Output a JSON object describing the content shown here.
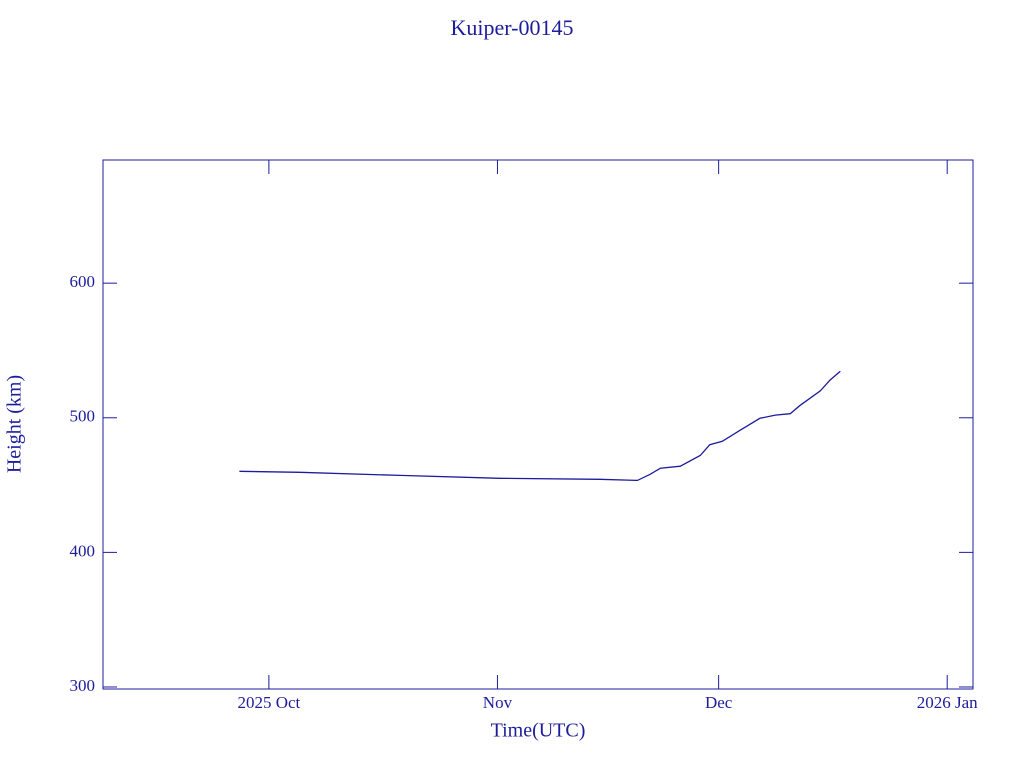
{
  "chart_data": {
    "type": "line",
    "title": "Kuiper-00145",
    "x_label": "Time(UTC)",
    "y_label": "Height (km)",
    "x": [
      -4,
      4.2,
      17.8,
      31.3,
      44.9,
      50,
      51.7,
      53.1,
      55.8,
      58.5,
      59.8,
      61.5,
      63.9,
      66.6,
      68.7,
      70.7,
      72,
      74.8,
      76.1,
      77.5
    ],
    "series": [
      {
        "name": "Height",
        "color": "#1c1c9c",
        "values": [
          460.2,
          459.5,
          457.2,
          455,
          454.3,
          453.5,
          458,
          462.5,
          464,
          472,
          480,
          482.5,
          490.7,
          499.6,
          502,
          503,
          509,
          520,
          528,
          534.6
        ]
      }
    ],
    "xlim": [
      -22.5,
      95.5
    ],
    "xticks": [
      {
        "value": 0,
        "label": "2025 Oct"
      },
      {
        "value": 31,
        "label": "Nov"
      },
      {
        "value": 61,
        "label": "Dec"
      },
      {
        "value": 92,
        "label": "2026 Jan"
      }
    ],
    "ylim": [
      298.5,
      691.5
    ],
    "yticks": [
      300,
      400,
      500,
      600
    ]
  }
}
